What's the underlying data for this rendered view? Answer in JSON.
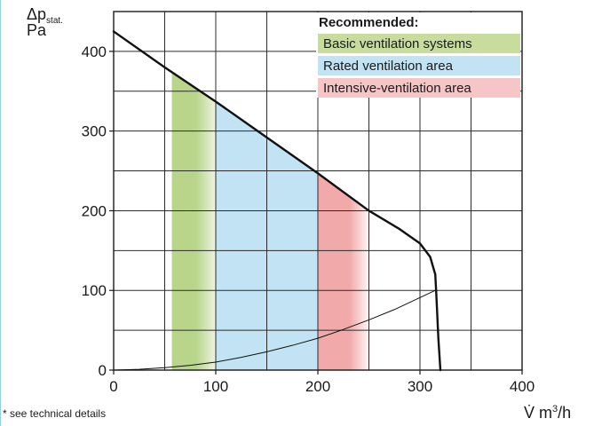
{
  "chart_data": {
    "type": "line",
    "ylabel_symbol": "Δp",
    "ylabel_subscript": "stat.",
    "ylabel_unit": "Pa",
    "xlabel_symbol": "V̇",
    "xlabel_unit": "m",
    "xlabel_unit_exp": "3",
    "xlabel_unit_tail": "/h",
    "xlim": [
      0,
      400
    ],
    "ylim": [
      0,
      450
    ],
    "x_ticks": [
      0,
      100,
      200,
      300,
      400
    ],
    "y_ticks": [
      0,
      100,
      200,
      300,
      400
    ],
    "x_grid_step": 50,
    "y_grid_step": 50,
    "grid": true,
    "legend": {
      "title": "Recommended:",
      "placement": "top-right",
      "entries": [
        {
          "label": "Basic ventilation systems",
          "color": "#c8dc9e"
        },
        {
          "label": "Rated ventilation area",
          "color": "#c2e3f4"
        },
        {
          "label": "Intensive-ventilation area",
          "color": "#f6c6c6"
        }
      ]
    },
    "regions": [
      {
        "name": "Basic ventilation systems",
        "x": [
          57,
          100
        ],
        "color": "#b8d58a"
      },
      {
        "name": "Rated ventilation area",
        "x": [
          100,
          200
        ],
        "color": "#c2e3f4"
      },
      {
        "name": "Intensive-ventilation area",
        "x": [
          200,
          252
        ],
        "color": "#f2a9a9"
      }
    ],
    "series": [
      {
        "x": [
          0,
          50,
          100,
          150,
          200,
          250,
          280,
          300,
          310,
          315,
          316,
          318,
          320
        ],
        "y": [
          425,
          380,
          337,
          292,
          247,
          200,
          177,
          159,
          142,
          120,
          95,
          40,
          0
        ],
        "color": "#111111",
        "width": 2.4
      },
      {
        "x": [
          0,
          25,
          50,
          75,
          100,
          125,
          150,
          175,
          200,
          225,
          250,
          275,
          300,
          315
        ],
        "y": [
          0,
          1,
          3,
          6,
          10,
          16,
          23,
          31,
          40,
          51,
          63,
          76,
          91,
          100
        ],
        "color": "#111111",
        "width": 1
      }
    ]
  },
  "footnote": "* see technical details"
}
